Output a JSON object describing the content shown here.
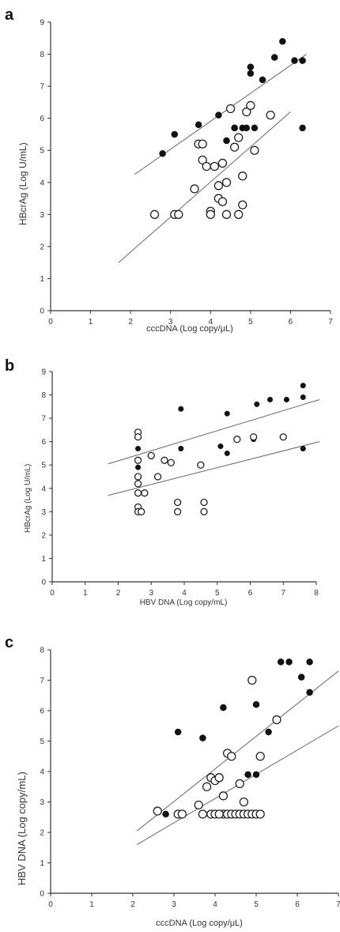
{
  "chart_data": [
    {
      "panel": "a",
      "type": "scatter",
      "xlabel": "cccDNA (Log copy/μL)",
      "ylabel": "HBcrAg (Log U/mL)",
      "xlim": [
        0,
        7
      ],
      "ylim": [
        0,
        9
      ],
      "xticks": [
        "0",
        "1",
        "2",
        "3",
        "4",
        "5",
        "6",
        "7"
      ],
      "yticks": [
        "0",
        "1",
        "2",
        "3",
        "4",
        "5",
        "6",
        "7",
        "8",
        "9"
      ],
      "series": [
        {
          "marker": "filled",
          "x": [
            2.8,
            3.1,
            3.7,
            4.2,
            4.4,
            4.6,
            4.8,
            5.0,
            5.0,
            5.1,
            5.3,
            5.6,
            5.8,
            6.1,
            6.3,
            6.3,
            4.6,
            4.9
          ],
          "y": [
            4.9,
            5.5,
            5.8,
            6.1,
            5.3,
            5.7,
            5.7,
            7.6,
            7.4,
            5.7,
            7.2,
            7.9,
            8.4,
            7.8,
            7.8,
            5.7,
            5.7,
            5.7
          ]
        },
        {
          "marker": "open",
          "x": [
            2.6,
            3.1,
            3.2,
            3.6,
            3.7,
            3.8,
            3.8,
            3.9,
            4.0,
            4.0,
            4.1,
            4.2,
            4.2,
            4.3,
            4.3,
            4.4,
            4.4,
            4.5,
            4.6,
            4.7,
            4.7,
            4.8,
            4.8,
            4.9,
            5.0,
            5.1,
            5.5
          ],
          "y": [
            3.0,
            3.0,
            3.0,
            3.8,
            5.2,
            5.2,
            4.7,
            4.5,
            3.1,
            3.0,
            4.5,
            3.9,
            3.5,
            3.4,
            4.6,
            4.0,
            3.0,
            6.3,
            5.1,
            5.4,
            3.0,
            4.2,
            3.3,
            6.2,
            6.4,
            5.0,
            6.1
          ]
        }
      ],
      "fit_lines": [
        {
          "x": [
            2.1,
            6.4
          ],
          "y": [
            4.25,
            8.0
          ]
        },
        {
          "x": [
            1.7,
            6.0
          ],
          "y": [
            1.5,
            6.2
          ]
        }
      ]
    },
    {
      "panel": "b",
      "type": "scatter",
      "xlabel": "HBV DNA (Log copy/mL)",
      "ylabel": "HBcrAg (Log U/mL)",
      "xlim": [
        0,
        8
      ],
      "ylim": [
        0,
        9
      ],
      "xticks": [
        "0",
        "1",
        "2",
        "3",
        "4",
        "5",
        "6",
        "7",
        "8"
      ],
      "yticks": [
        "0",
        "1",
        "2",
        "3",
        "4",
        "5",
        "6",
        "7",
        "8",
        "9"
      ],
      "series": [
        {
          "marker": "filled",
          "x": [
            2.6,
            2.6,
            3.9,
            3.9,
            5.1,
            5.3,
            5.3,
            6.1,
            6.2,
            6.6,
            7.1,
            7.6,
            7.6,
            7.6
          ],
          "y": [
            5.7,
            4.9,
            7.4,
            5.7,
            5.8,
            5.5,
            7.2,
            6.1,
            7.6,
            7.8,
            7.8,
            8.4,
            7.9,
            5.7
          ]
        },
        {
          "marker": "open",
          "x": [
            2.6,
            2.6,
            2.6,
            2.6,
            2.6,
            2.6,
            2.6,
            2.6,
            2.7,
            2.8,
            3.0,
            3.2,
            3.4,
            3.6,
            3.8,
            3.8,
            4.5,
            4.6,
            4.6,
            5.6,
            6.1,
            7.0
          ],
          "y": [
            6.4,
            6.2,
            5.2,
            4.5,
            4.2,
            3.8,
            3.2,
            3.0,
            3.0,
            3.8,
            5.4,
            4.5,
            5.2,
            5.1,
            3.4,
            3.0,
            5.0,
            3.4,
            3.0,
            6.1,
            6.2,
            6.2
          ]
        }
      ],
      "fit_lines": [
        {
          "x": [
            1.7,
            8.1
          ],
          "y": [
            5.05,
            7.8
          ]
        },
        {
          "x": [
            1.7,
            8.1
          ],
          "y": [
            3.7,
            6.0
          ]
        }
      ]
    },
    {
      "panel": "c",
      "type": "scatter",
      "xlabel": "cccDNA (Log copy/μL)",
      "ylabel": "HBV DNA (Log copy/mL)",
      "xlim": [
        0,
        7
      ],
      "ylim": [
        0,
        8
      ],
      "xticks": [
        "0",
        "1",
        "2",
        "3",
        "4",
        "5",
        "6",
        "7"
      ],
      "yticks": [
        "0",
        "1",
        "2",
        "3",
        "4",
        "5",
        "6",
        "7",
        "8"
      ],
      "series": [
        {
          "marker": "filled",
          "x": [
            2.8,
            3.1,
            3.7,
            4.2,
            4.8,
            5.0,
            5.0,
            5.3,
            5.6,
            5.8,
            6.1,
            6.3,
            6.3
          ],
          "y": [
            2.6,
            5.3,
            5.1,
            6.1,
            3.9,
            6.2,
            3.9,
            5.3,
            7.6,
            7.6,
            7.1,
            6.6,
            7.6
          ]
        },
        {
          "marker": "open",
          "x": [
            2.6,
            3.1,
            3.2,
            3.6,
            3.7,
            3.8,
            3.9,
            3.9,
            4.0,
            4.0,
            4.1,
            4.2,
            4.2,
            4.3,
            4.3,
            4.4,
            4.4,
            4.5,
            4.6,
            4.6,
            4.7,
            4.7,
            4.8,
            4.9,
            4.9,
            5.0,
            5.1,
            5.1,
            5.5,
            4.1
          ],
          "y": [
            2.7,
            2.6,
            2.6,
            2.9,
            2.6,
            3.5,
            2.6,
            3.8,
            3.7,
            2.6,
            3.8,
            2.6,
            3.2,
            2.6,
            4.6,
            2.6,
            4.5,
            2.6,
            2.6,
            3.6,
            2.6,
            3.0,
            2.6,
            7.0,
            2.6,
            2.6,
            2.6,
            4.5,
            5.7,
            2.6
          ]
        }
      ],
      "fit_lines": [
        {
          "x": [
            2.1,
            7.0
          ],
          "y": [
            2.05,
            7.3
          ]
        },
        {
          "x": [
            2.1,
            7.0
          ],
          "y": [
            1.6,
            5.5
          ]
        }
      ]
    }
  ]
}
